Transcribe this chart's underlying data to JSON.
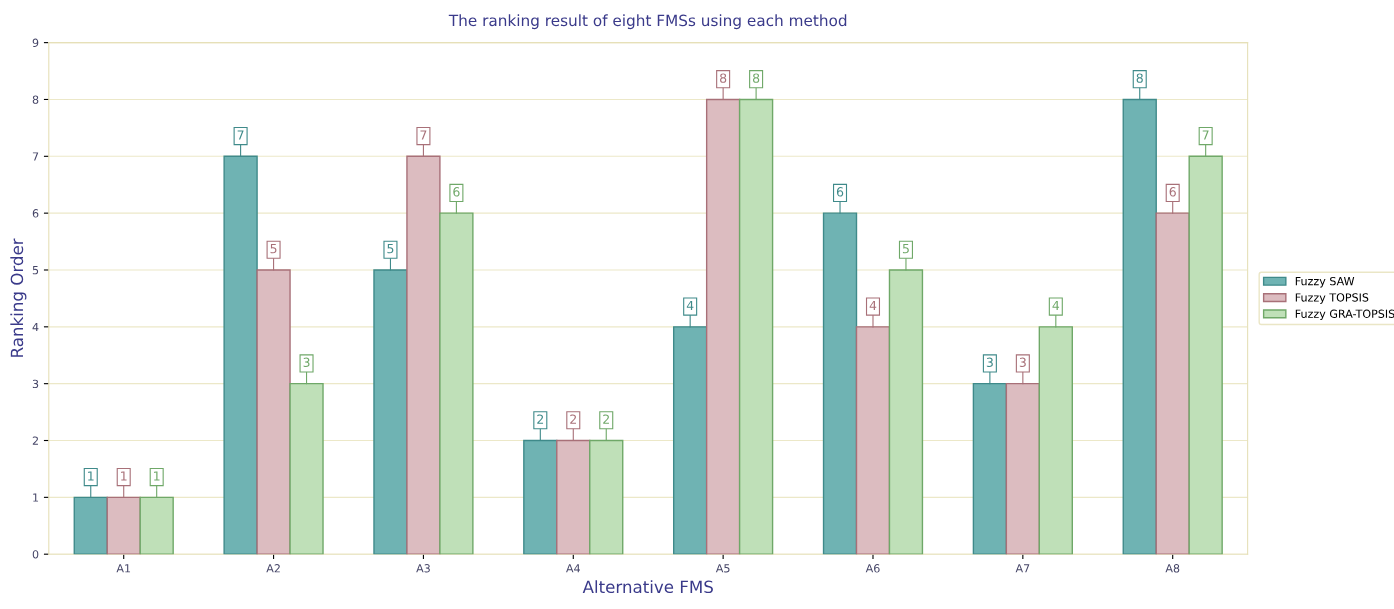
{
  "chart_data": {
    "type": "bar",
    "title": "The ranking result of eight FMSs using each method",
    "xlabel": "Alternative FMS",
    "ylabel": "Ranking Order",
    "categories": [
      "A1",
      "A2",
      "A3",
      "A4",
      "A5",
      "A6",
      "A7",
      "A8"
    ],
    "series": [
      {
        "name": "Fuzzy SAW",
        "color": "#6fb3b3",
        "values": [
          1,
          7,
          5,
          2,
          4,
          6,
          3,
          8
        ]
      },
      {
        "name": "Fuzzy TOPSIS",
        "color": "#dcbcc0",
        "values": [
          1,
          5,
          7,
          2,
          8,
          4,
          3,
          6
        ]
      },
      {
        "name": "Fuzzy GRA-TOPSIS",
        "color": "#bfe0b8",
        "values": [
          1,
          3,
          6,
          2,
          8,
          5,
          4,
          7
        ]
      }
    ],
    "ylim": [
      0,
      9
    ],
    "yticks": [
      0,
      1,
      2,
      3,
      4,
      5,
      6,
      7,
      8,
      9
    ],
    "grid": "y",
    "legend": "right",
    "data_labels": true
  }
}
